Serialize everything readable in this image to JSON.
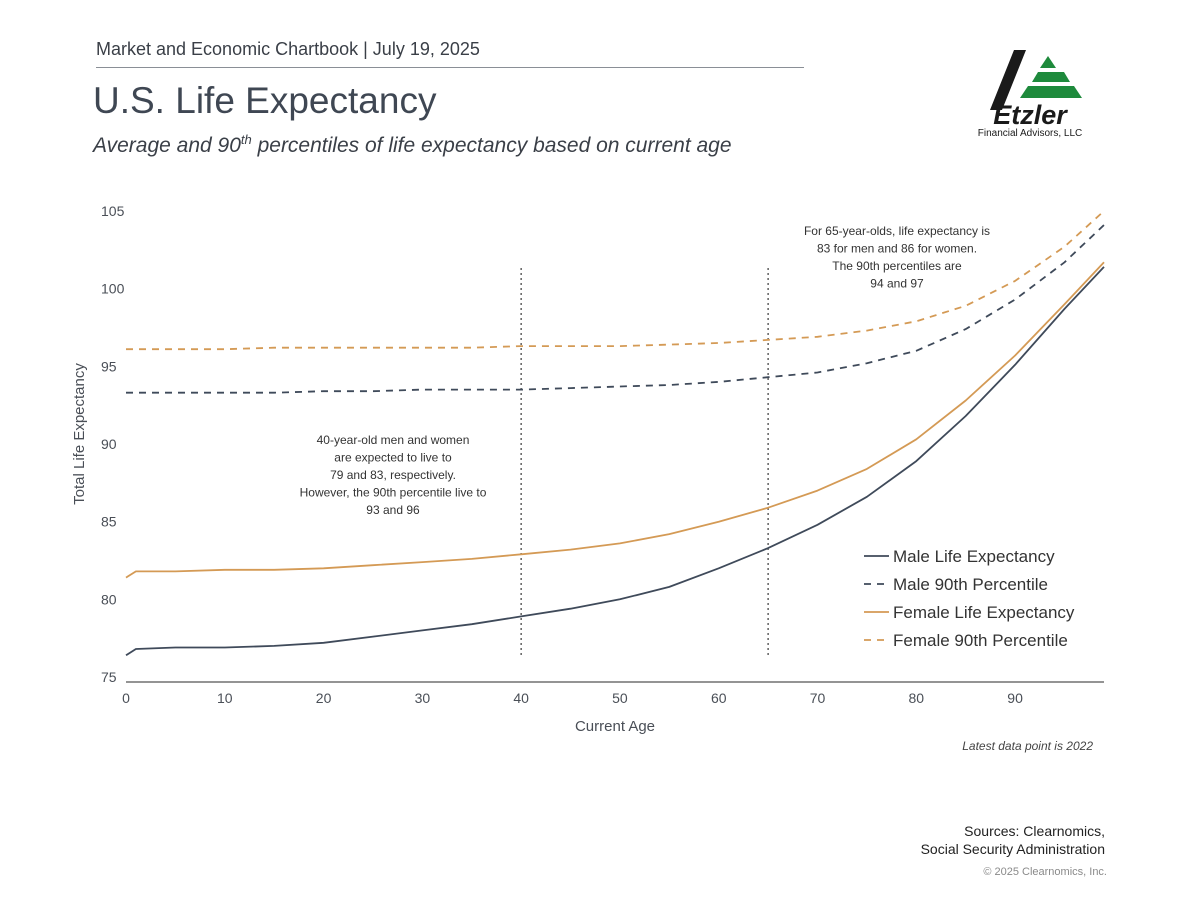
{
  "header": {
    "chartbook": "Market and Economic Chartbook | July 19, 2025",
    "title": "U.S. Life Expectancy",
    "subtitle_pre": "Average and 90",
    "subtitle_sup": "th",
    "subtitle_post": " percentiles of life expectancy based on current age"
  },
  "logo": {
    "name": "Etzler",
    "tagline": "Financial Advisors, LLC",
    "colors": {
      "dark": "#1a1a1a",
      "green": "#1e8a3c"
    }
  },
  "chart_data": {
    "type": "line",
    "title": "U.S. Life Expectancy",
    "xlabel": "Current Age",
    "ylabel": "Total Life Expectancy",
    "xlim": [
      0,
      99
    ],
    "ylim": [
      75,
      105
    ],
    "x_ticks": [
      0,
      10,
      20,
      30,
      40,
      50,
      60,
      70,
      80,
      90
    ],
    "y_ticks": [
      75,
      80,
      85,
      90,
      95,
      100,
      105
    ],
    "x": [
      0,
      1,
      5,
      10,
      15,
      20,
      25,
      30,
      35,
      40,
      45,
      50,
      55,
      60,
      65,
      70,
      75,
      80,
      85,
      90,
      95,
      99
    ],
    "series": [
      {
        "name": "Male Life Expectancy",
        "style": "solid",
        "color": "#3f4a5a",
        "values": [
          76.4,
          76.8,
          76.9,
          76.9,
          77.0,
          77.2,
          77.6,
          78.0,
          78.4,
          78.9,
          79.4,
          80.0,
          80.8,
          82.0,
          83.3,
          84.8,
          86.6,
          88.9,
          91.8,
          95.1,
          98.7,
          101.4
        ]
      },
      {
        "name": "Male 90th Percentile",
        "style": "dashed",
        "color": "#3f4a5a",
        "values": [
          93.3,
          93.3,
          93.3,
          93.3,
          93.3,
          93.4,
          93.4,
          93.5,
          93.5,
          93.5,
          93.6,
          93.7,
          93.8,
          94.0,
          94.3,
          94.6,
          95.2,
          96.0,
          97.4,
          99.3,
          101.7,
          104.1
        ]
      },
      {
        "name": "Female Life Expectancy",
        "style": "solid",
        "color": "#d49a55",
        "values": [
          81.4,
          81.8,
          81.8,
          81.9,
          81.9,
          82.0,
          82.2,
          82.4,
          82.6,
          82.9,
          83.2,
          83.6,
          84.2,
          85.0,
          85.9,
          87.0,
          88.4,
          90.3,
          92.8,
          95.7,
          99.0,
          101.7
        ]
      },
      {
        "name": "Female 90th Percentile",
        "style": "dashed",
        "color": "#d49a55",
        "values": [
          96.1,
          96.1,
          96.1,
          96.1,
          96.2,
          96.2,
          96.2,
          96.2,
          96.2,
          96.3,
          96.3,
          96.3,
          96.4,
          96.5,
          96.7,
          96.9,
          97.3,
          97.9,
          98.9,
          100.5,
          102.7,
          105.0
        ]
      }
    ],
    "reference_lines_x": [
      40,
      65
    ],
    "annotations": [
      {
        "at": "left",
        "lines": [
          "40-year-old men and women",
          "are expected to live to",
          "79 and 83, respectively.",
          "However, the 90th percentile live to",
          "93 and 96"
        ]
      },
      {
        "at": "top-right",
        "lines": [
          "For 65-year-olds, life expectancy is",
          "83 for men and 86 for women.",
          "The 90th percentiles are",
          "94 and 97"
        ]
      }
    ],
    "legend_position": "bottom-right"
  },
  "footer": {
    "latest": "Latest data point is 2022",
    "sources_line1": "Sources: Clearnomics,",
    "sources_line2": "Social Security Administration",
    "copyright": "© 2025 Clearnomics, Inc."
  }
}
